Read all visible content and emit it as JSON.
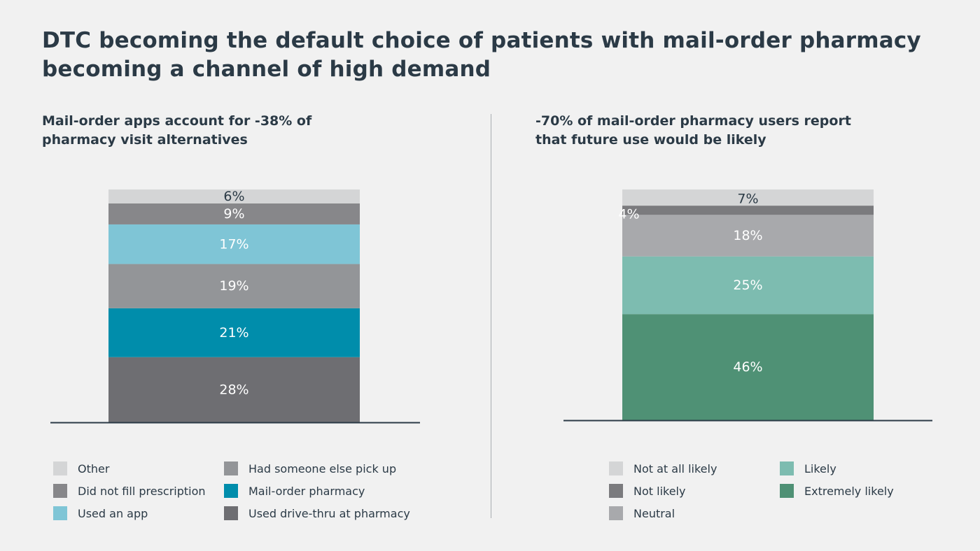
{
  "title": "DTC becoming the default choice of patients with mail-order pharmacy becoming a channel of high demand",
  "chart_data": [
    {
      "type": "bar",
      "stacked": true,
      "subtitle": "Mail-order apps account for -38% of pharmacy visit alternatives",
      "series": [
        {
          "name": "Used drive-thru at pharmacy",
          "value": 28,
          "label": "28%",
          "color": "#6e6e72",
          "text_color": "#ffffff"
        },
        {
          "name": "Mail-order pharmacy",
          "value": 21,
          "label": "21%",
          "color": "#008dab",
          "text_color": "#ffffff"
        },
        {
          "name": "Had someone else pick up",
          "value": 19,
          "label": "19%",
          "color": "#939598",
          "text_color": "#ffffff"
        },
        {
          "name": "Used an app",
          "value": 17,
          "label": "17%",
          "color": "#7fc5d6",
          "text_color": "#ffffff"
        },
        {
          "name": "Did not fill prescription",
          "value": 9,
          "label": "9%",
          "color": "#87878a",
          "text_color": "#ffffff"
        },
        {
          "name": "Other",
          "value": 6,
          "label": "6%",
          "color": "#d4d5d6",
          "text_color": "#2b3a46"
        }
      ],
      "legend": [
        "Other",
        "Had someone else pick up",
        "Did not fill prescription",
        "Mail-order pharmacy",
        "Used an app",
        "Used drive-thru at pharmacy"
      ]
    },
    {
      "type": "bar",
      "stacked": true,
      "subtitle": "-70% of mail-order pharmacy users report that future use would be likely",
      "series": [
        {
          "name": "Extremely likely",
          "value": 46,
          "label": "46%",
          "color": "#4f9175",
          "text_color": "#ffffff"
        },
        {
          "name": "Likely",
          "value": 25,
          "label": "25%",
          "color": "#7dbcb0",
          "text_color": "#ffffff"
        },
        {
          "name": "Neutral",
          "value": 18,
          "label": "18%",
          "color": "#a8a9ac",
          "text_color": "#ffffff"
        },
        {
          "name": "Not likely",
          "value": 4,
          "label": "4%",
          "color": "#7b7b7e",
          "text_color": "#ffffff"
        },
        {
          "name": "Not at all likely",
          "value": 7,
          "label": "7%",
          "color": "#d4d5d6",
          "text_color": "#2b3a46"
        }
      ],
      "legend": [
        "Not at all likely",
        "Likely",
        "Not likely",
        "Extremely likely",
        "Neutral"
      ]
    }
  ]
}
